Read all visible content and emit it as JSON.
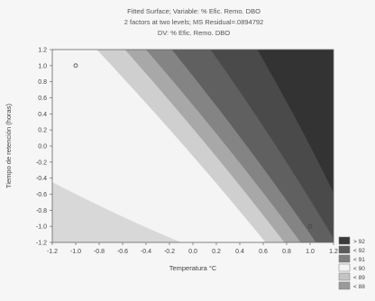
{
  "chart_data": {
    "type": "heatmap",
    "subtype": "contour-surface",
    "title_lines": [
      "Fitted Surface; Variable: % Efic. Remo. DBO",
      "2 factors at two levels; MS Residual=.0894792",
      "DV: % Efic. Remo. DBO"
    ],
    "xlabel": "Temperatura °C",
    "ylabel": "Tiempo de retención (horas)",
    "xlim": [
      -1.2,
      1.2
    ],
    "ylim": [
      -1.2,
      1.2
    ],
    "xticks": [
      "-1.2",
      "-1.0",
      "-0.8",
      "-0.6",
      "-0.4",
      "-0.2",
      "0.0",
      "0.2",
      "0.4",
      "0.6",
      "0.8",
      "1.0",
      "1.2"
    ],
    "yticks": [
      "1.2",
      "1.0",
      "0.8",
      "0.6",
      "0.4",
      "0.2",
      "0.0",
      "-0.2",
      "-0.4",
      "-0.6",
      "-0.8",
      "-1.0",
      "-1.2"
    ],
    "design_points": [
      {
        "x": -1.0,
        "y": 1.0
      },
      {
        "x": 1.0,
        "y": -1.0
      }
    ],
    "legend": [
      {
        "label": "> 92",
        "color": "#3a3a3a"
      },
      {
        "label": "< 92",
        "color": "#5a5a5a"
      },
      {
        "label": "< 91",
        "color": "#7f7f7f"
      },
      {
        "label": "< 90",
        "color": "#f4f4f4"
      },
      {
        "label": "< 89",
        "color": "#c4c4c4"
      },
      {
        "label": "< 88",
        "color": "#9a9a9a"
      }
    ],
    "bands": [
      {
        "upper_x_at_y_top": -0.82,
        "upper_x_at_y_bottom": 0.62,
        "color": "#f4f4f4"
      },
      {
        "upper_x_at_y_top": -0.58,
        "upper_x_at_y_bottom": 0.78,
        "color": "#cfcfcf"
      },
      {
        "upper_x_at_y_top": -0.4,
        "upper_x_at_y_bottom": 0.92,
        "color": "#a8a8a8"
      },
      {
        "upper_x_at_y_top": -0.18,
        "upper_x_at_y_bottom": 1.05,
        "color": "#848484"
      },
      {
        "upper_x_at_y_top": 0.15,
        "upper_x_at_y_bottom": 1.22,
        "color": "#606060"
      },
      {
        "upper_x_at_y_top": 0.55,
        "upper_x_at_y_bottom": 1.4,
        "color": "#4a4a4a"
      },
      {
        "upper_x_at_y_top": 2.0,
        "upper_x_at_y_bottom": 2.0,
        "color": "#333333"
      }
    ],
    "low_corner_band": {
      "x_at_y_bottom": -0.1,
      "y_at_x_left": -0.45,
      "color": "#d8d8d8"
    }
  }
}
